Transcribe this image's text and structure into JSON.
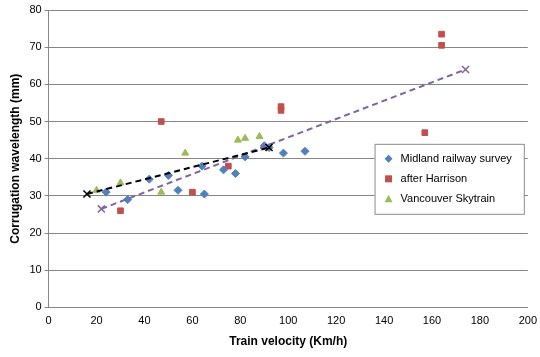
{
  "chart_data": {
    "type": "scatter",
    "x_label": "Train velocity (Km/h)",
    "y_label": "Corrugation wavelength (mm)",
    "xlim": [
      0,
      200
    ],
    "xticks": [
      0,
      20,
      40,
      60,
      80,
      100,
      120,
      140,
      160,
      180,
      200
    ],
    "ylim": [
      0,
      80
    ],
    "yticks": [
      0,
      10,
      20,
      30,
      40,
      50,
      60,
      70,
      80
    ],
    "grid": "y",
    "legend": "right",
    "series": [
      {
        "name": "Midland railway survey",
        "color": "#4f81bd",
        "marker": "diamond",
        "x": [
          24,
          33,
          42,
          50,
          54,
          64,
          65,
          73,
          78,
          82,
          90,
          92,
          98,
          107
        ],
        "values": [
          31,
          29,
          34.5,
          35.5,
          31.5,
          38,
          30.5,
          37,
          36,
          40.5,
          43.5,
          43,
          41.5,
          42
        ]
      },
      {
        "name": "after Harrison",
        "color": "#c0504d",
        "marker": "square",
        "x": [
          30,
          47,
          60,
          75,
          97,
          97,
          157,
          164,
          164
        ],
        "values": [
          26,
          50,
          31,
          38,
          54,
          53,
          47,
          73.5,
          70.5
        ]
      },
      {
        "name": "Vancouver Skytrain",
        "color": "#9bbb59",
        "marker": "triangle",
        "x": [
          20,
          30,
          47,
          57,
          79,
          82,
          88
        ],
        "values": [
          31.5,
          33.5,
          31,
          41.5,
          45,
          45.5,
          46
        ]
      },
      {
        "type": "line",
        "color": "#000000",
        "marker": "x",
        "line_style": "dashed",
        "x": [
          16,
          92
        ],
        "values": [
          30.5,
          43
        ]
      },
      {
        "type": "line",
        "color": "#8064a2",
        "marker": "x",
        "line_style": "dashed",
        "x": [
          22,
          174
        ],
        "values": [
          26.5,
          64
        ]
      }
    ]
  }
}
